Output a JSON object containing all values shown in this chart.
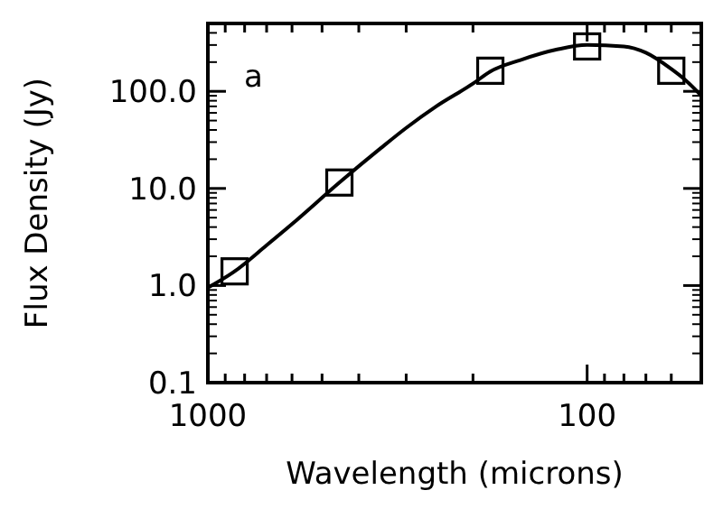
{
  "chart_data": {
    "type": "scatter",
    "xlabel": "Wavelength (microns)",
    "ylabel": "Flux Density (Jy)",
    "log": "xy",
    "marker": "square",
    "annotations": [
      "a"
    ],
    "xlim": [
      1000,
      50
    ],
    "ylim": [
      0.1,
      500
    ],
    "xticks": [
      {
        "value": 1000,
        "label": "1000"
      },
      {
        "value": 900,
        "label": null
      },
      {
        "value": 800,
        "label": null
      },
      {
        "value": 700,
        "label": null
      },
      {
        "value": 600,
        "label": null
      },
      {
        "value": 500,
        "label": null
      },
      {
        "value": 400,
        "label": null
      },
      {
        "value": 300,
        "label": null
      },
      {
        "value": 200,
        "label": null
      },
      {
        "value": 100,
        "label": "100"
      },
      {
        "value": 90,
        "label": null
      },
      {
        "value": 80,
        "label": null
      },
      {
        "value": 70,
        "label": null
      },
      {
        "value": 60,
        "label": null
      }
    ],
    "yticks": [
      0.1,
      {
        "value": 1,
        "label": "1.0"
      },
      {
        "value": 10,
        "label": "10.0"
      },
      {
        "value": 100,
        "label": "100.0"
      }
    ],
    "series": [
      {
        "color": "#000000",
        "x": [
          850,
          450,
          180,
          100,
          60
        ],
        "values": [
          1.4,
          11.5,
          163,
          290,
          163
        ]
      },
      {
        "type": "line",
        "color": "#000000",
        "marker": "none",
        "x": [
          1000,
          850,
          700,
          600,
          450,
          350,
          300,
          250,
          200,
          180,
          150,
          120,
          100,
          80,
          70,
          60,
          55,
          50
        ],
        "values": [
          0.95,
          1.4,
          2.6,
          4.3,
          11.5,
          26,
          42,
          70,
          120,
          160,
          210,
          270,
          300,
          290,
          250,
          170,
          130,
          90
        ]
      }
    ]
  }
}
